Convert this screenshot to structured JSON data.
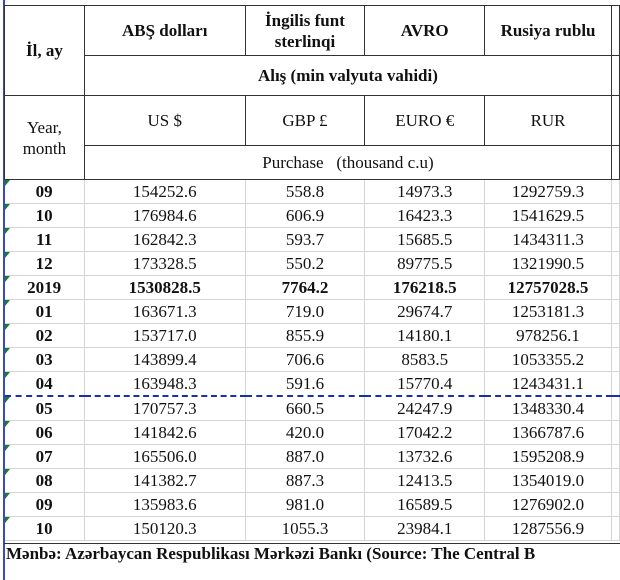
{
  "header": {
    "year_month_az": "İl, ay",
    "year_month_en": "Year, month",
    "currencies_az": [
      "ABŞ dolları",
      "İngilis funt sterlinqi",
      "AVRO",
      "Rusiya rublu"
    ],
    "currencies_en": [
      "US $",
      "GBP £",
      "EURO €",
      "RUR"
    ],
    "unit_az": "Alış (min valyuta vahidi)",
    "unit_en": "Purchase   (thousand c.u)"
  },
  "rows": [
    {
      "period": "09",
      "usd": "154252.6",
      "gbp": "558.8",
      "eur": "14973.3",
      "rur": "1292759.3"
    },
    {
      "period": "10",
      "usd": "176984.6",
      "gbp": "606.9",
      "eur": "16423.3",
      "rur": "1541629.5"
    },
    {
      "period": "11",
      "usd": "162842.3",
      "gbp": "593.7",
      "eur": "15685.5",
      "rur": "1434311.3"
    },
    {
      "period": "12",
      "usd": "173328.5",
      "gbp": "550.2",
      "eur": "89775.5",
      "rur": "1321990.5"
    },
    {
      "period": "2019",
      "usd": "1530828.5",
      "gbp": "7764.2",
      "eur": "176218.5",
      "rur": "12757028.5"
    },
    {
      "period": "01",
      "usd": "163671.3",
      "gbp": "719.0",
      "eur": "29674.7",
      "rur": "1253181.3"
    },
    {
      "period": "02",
      "usd": "153717.0",
      "gbp": "855.9",
      "eur": "14180.1",
      "rur": "978256.1"
    },
    {
      "period": "03",
      "usd": "143899.4",
      "gbp": "706.6",
      "eur": "8583.5",
      "rur": "1053355.2"
    },
    {
      "period": "04",
      "usd": "163948.3",
      "gbp": "591.6",
      "eur": "15770.4",
      "rur": "1243431.1"
    },
    {
      "period": "05",
      "usd": "170757.3",
      "gbp": "660.5",
      "eur": "24247.9",
      "rur": "1348330.4"
    },
    {
      "period": "06",
      "usd": "141842.6",
      "gbp": "420.0",
      "eur": "17042.2",
      "rur": "1366787.6"
    },
    {
      "period": "07",
      "usd": "165506.0",
      "gbp": "887.0",
      "eur": "13732.6",
      "rur": "1595208.9"
    },
    {
      "period": "08",
      "usd": "141382.7",
      "gbp": "887.3",
      "eur": "12413.5",
      "rur": "1354019.0"
    },
    {
      "period": "09",
      "usd": "135983.6",
      "gbp": "981.0",
      "eur": "16589.5",
      "rur": "1276902.0"
    },
    {
      "period": "10",
      "usd": "150120.3",
      "gbp": "1055.3",
      "eur": "23984.1",
      "rur": "1287556.9"
    }
  ],
  "footer": "Mənbə: Azərbaycan Respublikası Mərkəzi Bankı (Source: The Central B"
}
